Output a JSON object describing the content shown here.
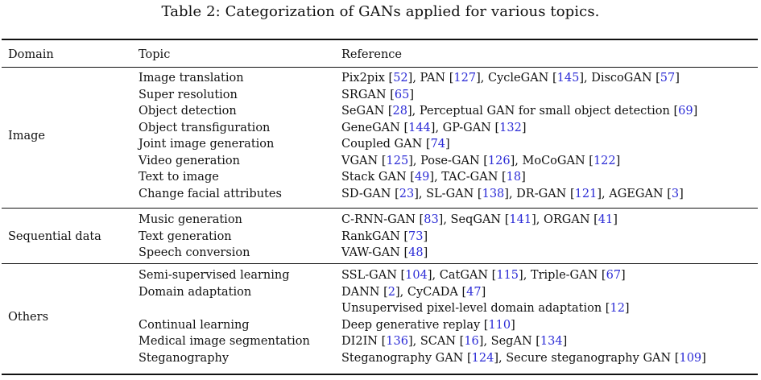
{
  "caption": "Table 2: Categorization of GANs applied for various topics.",
  "headers": {
    "domain": "Domain",
    "topic": "Topic",
    "reference": "Reference"
  },
  "colors": {
    "text": "#111111",
    "citation": "#2b2bd6"
  },
  "groups": [
    {
      "domain": "Image",
      "rows": [
        {
          "topic": "Image translation",
          "refs": [
            [
              "Pix2pix ",
              "52"
            ],
            [
              ", PAN ",
              "127"
            ],
            [
              ", CycleGAN ",
              "145"
            ],
            [
              ", DiscoGAN ",
              "57"
            ]
          ]
        },
        {
          "topic": "Super resolution",
          "refs": [
            [
              "SRGAN ",
              "65"
            ]
          ]
        },
        {
          "topic": "Object detection",
          "refs": [
            [
              "SeGAN ",
              "28"
            ],
            [
              ", Perceptual GAN for small object detection ",
              "69"
            ]
          ]
        },
        {
          "topic": "Object transfiguration",
          "refs": [
            [
              "GeneGAN ",
              "144"
            ],
            [
              ", GP-GAN ",
              "132"
            ]
          ]
        },
        {
          "topic": "Joint image generation",
          "refs": [
            [
              "Coupled GAN ",
              "74"
            ]
          ]
        },
        {
          "topic": "Video generation",
          "refs": [
            [
              "VGAN ",
              "125"
            ],
            [
              ", Pose-GAN ",
              "126"
            ],
            [
              ", MoCoGAN ",
              "122"
            ]
          ]
        },
        {
          "topic": "Text to image",
          "refs": [
            [
              "Stack GAN ",
              "49"
            ],
            [
              ", TAC-GAN ",
              "18"
            ]
          ]
        },
        {
          "topic": "Change facial attributes",
          "refs": [
            [
              "SD-GAN ",
              "23"
            ],
            [
              ", SL-GAN ",
              "138"
            ],
            [
              ", DR-GAN ",
              "121"
            ],
            [
              ", AGEGAN ",
              "3"
            ]
          ]
        }
      ]
    },
    {
      "domain": "Sequential data",
      "rows": [
        {
          "topic": "Music generation",
          "refs": [
            [
              "C-RNN-GAN ",
              "83"
            ],
            [
              ", SeqGAN ",
              "141"
            ],
            [
              ", ORGAN ",
              "41"
            ]
          ]
        },
        {
          "topic": "Text generation",
          "refs": [
            [
              "RankGAN ",
              "73"
            ]
          ]
        },
        {
          "topic": "Speech conversion",
          "refs": [
            [
              "VAW-GAN ",
              "48"
            ]
          ]
        }
      ]
    },
    {
      "domain": "Others",
      "rows": [
        {
          "topic": "Semi-supervised learning",
          "refs": [
            [
              "SSL-GAN ",
              "104"
            ],
            [
              ", CatGAN ",
              "115"
            ],
            [
              ", Triple-GAN ",
              "67"
            ]
          ]
        },
        {
          "topic": "Domain adaptation",
          "refs": [
            [
              "DANN ",
              "2"
            ],
            [
              ", CyCADA ",
              "47"
            ]
          ]
        },
        {
          "topic": "",
          "refs": [
            [
              "Unsupervised pixel-level domain adaptation ",
              "12"
            ]
          ]
        },
        {
          "topic": "Continual learning",
          "refs": [
            [
              "Deep generative replay ",
              "110"
            ]
          ]
        },
        {
          "topic": "Medical image segmentation",
          "refs": [
            [
              "DI2IN ",
              "136"
            ],
            [
              ", SCAN ",
              "16"
            ],
            [
              ", SegAN ",
              "134"
            ]
          ]
        },
        {
          "topic": "Steganography",
          "refs": [
            [
              "Steganography GAN ",
              "124"
            ],
            [
              ", Secure steganography GAN ",
              "109"
            ]
          ]
        }
      ]
    }
  ]
}
